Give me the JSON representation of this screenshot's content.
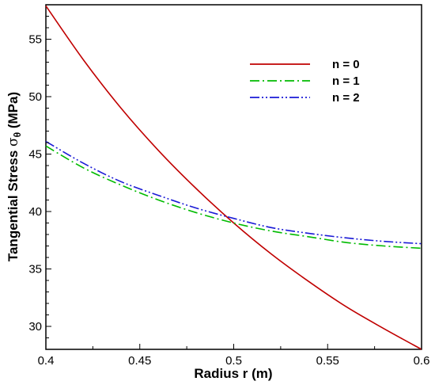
{
  "chart_data": {
    "type": "line",
    "xlabel": "Radius r (m)",
    "ylabel": {
      "main": "Tangential Stress ",
      "symbol": "σ",
      "subscript": "θ",
      "unit": " (MPa)"
    },
    "xlim": [
      0.4,
      0.6
    ],
    "ylim": [
      28,
      58
    ],
    "x_ticks": [
      "0.4",
      "0.45",
      "0.5",
      "0.55",
      "0.6"
    ],
    "y_ticks": [
      "30",
      "35",
      "40",
      "45",
      "50",
      "55"
    ],
    "grid": false,
    "legend_position": "top-right",
    "x": [
      0.4,
      0.42,
      0.44,
      0.46,
      0.48,
      0.5,
      0.52,
      0.54,
      0.56,
      0.58,
      0.6
    ],
    "series": [
      {
        "name": "n = 0",
        "color": "#c00000",
        "style": "solid",
        "values": [
          57.9,
          53.2,
          49.0,
          45.3,
          42.0,
          39.0,
          36.3,
          33.9,
          31.7,
          29.8,
          28.0
        ]
      },
      {
        "name": "n = 1",
        "color": "#00bb00",
        "style": "dash-dot",
        "values": [
          45.7,
          43.8,
          42.3,
          41.0,
          39.9,
          39.0,
          38.3,
          37.8,
          37.3,
          37.0,
          36.8
        ]
      },
      {
        "name": "n = 2",
        "color": "#1a1ad6",
        "style": "dash-dot-dot",
        "values": [
          46.1,
          44.2,
          42.6,
          41.4,
          40.3,
          39.4,
          38.6,
          38.1,
          37.7,
          37.4,
          37.2
        ]
      }
    ]
  }
}
